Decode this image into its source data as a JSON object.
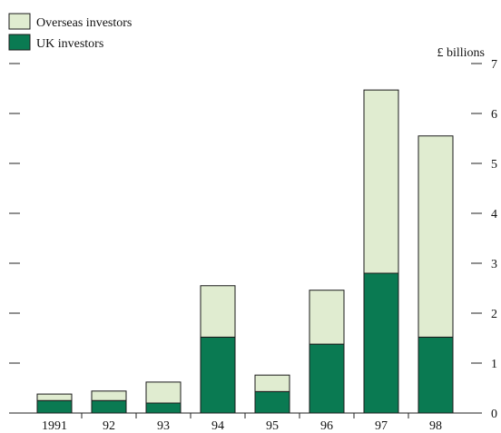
{
  "chart_data": {
    "type": "bar",
    "stacked": true,
    "categories": [
      "1991",
      "92",
      "93",
      "94",
      "95",
      "96",
      "97",
      "98"
    ],
    "series": [
      {
        "name": "UK investors",
        "color": "#0a7a52",
        "values": [
          0.25,
          0.25,
          0.2,
          1.52,
          0.43,
          1.38,
          2.8,
          1.52
        ]
      },
      {
        "name": "Overseas investors",
        "color": "#e0ecd0",
        "values": [
          0.13,
          0.19,
          0.42,
          1.03,
          0.33,
          1.08,
          3.67,
          4.03
        ]
      }
    ],
    "ylabel": "£ billions",
    "ylim": [
      0,
      7
    ],
    "yticks": [
      "0",
      "1",
      "2",
      "3",
      "4",
      "5",
      "6",
      "7"
    ],
    "legend": {
      "placement": "top-left",
      "items": [
        {
          "label": "Overseas investors",
          "color": "#e0ecd0"
        },
        {
          "label": "UK investors",
          "color": "#0a7a52"
        }
      ]
    },
    "grid": false
  }
}
